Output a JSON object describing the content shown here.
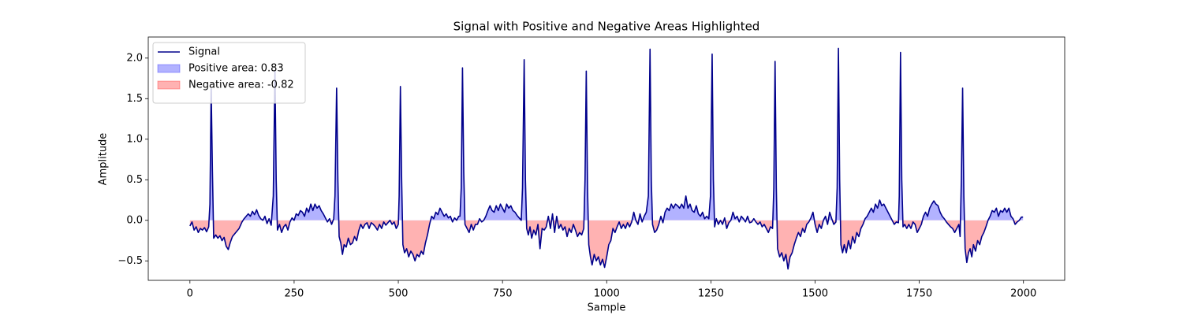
{
  "chart_data": {
    "type": "line",
    "title": "Signal with Positive and Negative Areas Highlighted",
    "xlabel": "Sample",
    "ylabel": "Amplitude",
    "xlim": [
      -99.95,
      2098.95
    ],
    "ylim": [
      -0.74,
      2.26
    ],
    "xticks": [
      0,
      250,
      500,
      750,
      1000,
      1250,
      1500,
      1750,
      2000
    ],
    "yticks": [
      {
        "value": -0.5,
        "label": "−0.5"
      },
      {
        "value": 0,
        "label": "0.0"
      },
      {
        "value": 0.5,
        "label": "0.5"
      },
      {
        "value": 1,
        "label": "1.0"
      },
      {
        "value": 1.5,
        "label": "1.5"
      },
      {
        "value": 2,
        "label": "2.0"
      }
    ],
    "legend": "upper left",
    "series": [
      {
        "name": "Signal",
        "color": "#00008b",
        "x": [
          0,
          5,
          10,
          15,
          20,
          25,
          30,
          35,
          40,
          45,
          48,
          51,
          54,
          57,
          62,
          67,
          72,
          77,
          82,
          87,
          92,
          97,
          102,
          110,
          118,
          125,
          130,
          135,
          140,
          145,
          150,
          155,
          160,
          165,
          170,
          175,
          180,
          185,
          190,
          195,
          200,
          204,
          207,
          210,
          215,
          220,
          225,
          230,
          235,
          240,
          245,
          250,
          255,
          260,
          265,
          270,
          275,
          280,
          285,
          290,
          295,
          300,
          305,
          310,
          315,
          320,
          325,
          330,
          335,
          340,
          345,
          348,
          352,
          355,
          358,
          362,
          366,
          370,
          375,
          380,
          385,
          390,
          395,
          400,
          405,
          410,
          415,
          420,
          425,
          430,
          435,
          440,
          445,
          450,
          455,
          460,
          465,
          470,
          475,
          480,
          485,
          490,
          495,
          500,
          502,
          505,
          508,
          511,
          515,
          520,
          525,
          530,
          535,
          540,
          545,
          550,
          555,
          560,
          565,
          570,
          575,
          580,
          585,
          590,
          595,
          600,
          605,
          610,
          615,
          620,
          625,
          630,
          635,
          640,
          645,
          648,
          651,
          654,
          657,
          660,
          665,
          670,
          675,
          680,
          685,
          690,
          695,
          700,
          705,
          710,
          715,
          720,
          725,
          730,
          735,
          740,
          745,
          750,
          755,
          760,
          765,
          770,
          775,
          780,
          785,
          790,
          795,
          798,
          802,
          805,
          808,
          812,
          816,
          820,
          825,
          830,
          835,
          840,
          845,
          850,
          855,
          860,
          865,
          870,
          875,
          880,
          885,
          890,
          895,
          900,
          905,
          910,
          915,
          920,
          925,
          930,
          935,
          940,
          945,
          948,
          951,
          954,
          957,
          961,
          965,
          970,
          975,
          980,
          985,
          990,
          995,
          1000,
          1005,
          1010,
          1015,
          1020,
          1025,
          1030,
          1035,
          1040,
          1045,
          1050,
          1055,
          1060,
          1065,
          1070,
          1075,
          1080,
          1085,
          1090,
          1095,
          1100,
          1104,
          1107,
          1110,
          1115,
          1120,
          1125,
          1130,
          1135,
          1140,
          1145,
          1150,
          1155,
          1160,
          1165,
          1170,
          1175,
          1180,
          1185,
          1190,
          1195,
          1200,
          1205,
          1210,
          1215,
          1220,
          1225,
          1230,
          1235,
          1240,
          1245,
          1249,
          1253,
          1256,
          1259,
          1263,
          1268,
          1273,
          1278,
          1283,
          1288,
          1293,
          1298,
          1303,
          1308,
          1313,
          1318,
          1323,
          1328,
          1333,
          1338,
          1343,
          1348,
          1353,
          1358,
          1363,
          1368,
          1373,
          1378,
          1383,
          1388,
          1393,
          1398,
          1401,
          1404,
          1407,
          1410,
          1415,
          1420,
          1425,
          1430,
          1435,
          1440,
          1445,
          1450,
          1455,
          1460,
          1465,
          1470,
          1475,
          1480,
          1485,
          1490,
          1495,
          1500,
          1505,
          1510,
          1515,
          1520,
          1525,
          1530,
          1535,
          1540,
          1545,
          1550,
          1553,
          1556,
          1559,
          1562,
          1566,
          1570,
          1575,
          1580,
          1585,
          1590,
          1595,
          1600,
          1605,
          1610,
          1615,
          1620,
          1625,
          1630,
          1635,
          1640,
          1645,
          1650,
          1655,
          1660,
          1665,
          1670,
          1675,
          1680,
          1685,
          1690,
          1695,
          1700,
          1702,
          1705,
          1708,
          1711,
          1715,
          1720,
          1725,
          1730,
          1735,
          1740,
          1745,
          1750,
          1755,
          1760,
          1765,
          1770,
          1775,
          1780,
          1785,
          1790,
          1795,
          1800,
          1805,
          1810,
          1815,
          1820,
          1825,
          1830,
          1835,
          1840,
          1845,
          1848,
          1851,
          1854,
          1857,
          1860,
          1864,
          1868,
          1872,
          1876,
          1880,
          1885,
          1890,
          1895,
          1900,
          1905,
          1910,
          1915,
          1920,
          1925,
          1930,
          1935,
          1940,
          1945,
          1950,
          1955,
          1960,
          1965,
          1970,
          1975,
          1980,
          1985,
          1990,
          1995,
          1999
        ],
        "values": [
          -0.07,
          -0.02,
          -0.12,
          -0.08,
          -0.15,
          -0.1,
          -0.12,
          -0.09,
          -0.14,
          -0.08,
          0.2,
          1.62,
          0.6,
          -0.22,
          -0.18,
          -0.22,
          -0.19,
          -0.25,
          -0.21,
          -0.32,
          -0.36,
          -0.27,
          -0.2,
          -0.15,
          -0.1,
          -0.02,
          0.02,
          0.05,
          0.08,
          0.05,
          0.11,
          0.07,
          0.13,
          0.06,
          0.02,
          0.0,
          0.05,
          -0.04,
          0.02,
          -0.06,
          0.3,
          1.84,
          0.5,
          -0.12,
          -0.05,
          -0.15,
          -0.08,
          -0.05,
          -0.12,
          -0.02,
          0.03,
          0.0,
          0.08,
          0.06,
          0.12,
          0.1,
          0.05,
          0.15,
          0.1,
          0.2,
          0.12,
          0.2,
          0.15,
          0.18,
          0.12,
          0.08,
          0.03,
          -0.02,
          0.02,
          -0.05,
          0.02,
          0.3,
          1.63,
          0.5,
          -0.2,
          -0.28,
          -0.42,
          -0.3,
          -0.33,
          -0.22,
          -0.3,
          -0.28,
          -0.2,
          -0.25,
          -0.13,
          -0.05,
          -0.1,
          -0.05,
          -0.03,
          -0.1,
          -0.03,
          -0.05,
          -0.08,
          -0.12,
          -0.05,
          -0.1,
          -0.02,
          -0.06,
          -0.03,
          0.0,
          -0.05,
          -0.02,
          -0.1,
          -0.05,
          0.3,
          1.65,
          0.5,
          -0.3,
          -0.4,
          -0.35,
          -0.45,
          -0.38,
          -0.42,
          -0.5,
          -0.42,
          -0.45,
          -0.38,
          -0.42,
          -0.28,
          -0.18,
          -0.05,
          0.05,
          0.02,
          0.1,
          0.07,
          0.15,
          0.1,
          0.05,
          0.08,
          0.03,
          0.05,
          -0.02,
          0.03,
          0.0,
          0.05,
          0.05,
          0.4,
          1.88,
          0.6,
          -0.05,
          -0.1,
          -0.15,
          -0.05,
          -0.12,
          -0.05,
          -0.05,
          0.02,
          -0.02,
          0.0,
          0.05,
          0.12,
          0.18,
          0.12,
          0.1,
          0.18,
          0.12,
          0.2,
          0.15,
          0.1,
          0.2,
          0.15,
          0.18,
          0.12,
          0.1,
          0.06,
          0.03,
          0.0,
          0.4,
          1.98,
          0.5,
          -0.1,
          -0.18,
          -0.08,
          -0.22,
          -0.12,
          -0.18,
          -0.05,
          -0.35,
          -0.1,
          -0.12,
          -0.08,
          0.05,
          -0.1,
          0.08,
          -0.15,
          0.05,
          -0.1,
          -0.05,
          -0.12,
          -0.08,
          -0.2,
          -0.1,
          -0.15,
          -0.05,
          -0.12,
          -0.2,
          -0.15,
          -0.18,
          -0.1,
          0.5,
          1.84,
          0.4,
          -0.3,
          -0.45,
          -0.55,
          -0.42,
          -0.5,
          -0.45,
          -0.55,
          -0.48,
          -0.58,
          -0.45,
          -0.3,
          -0.25,
          -0.1,
          -0.15,
          -0.08,
          -0.02,
          -0.1,
          -0.05,
          -0.1,
          -0.03,
          -0.08,
          -0.02,
          0.1,
          0.0,
          -0.05,
          0.08,
          -0.02,
          0.05,
          0.1,
          0.3,
          2.11,
          0.5,
          -0.05,
          -0.15,
          -0.12,
          -0.05,
          0.05,
          -0.03,
          0.1,
          0.15,
          0.12,
          0.2,
          0.15,
          0.2,
          0.18,
          0.15,
          0.2,
          0.15,
          0.3,
          0.15,
          0.2,
          0.12,
          0.1,
          0.18,
          0.08,
          0.05,
          0.1,
          0.02,
          0.05,
          0.02,
          0.3,
          2.05,
          0.5,
          -0.08,
          0.02,
          -0.05,
          0.0,
          -0.05,
          0.03,
          -0.1,
          -0.03,
          0.0,
          0.1,
          0.02,
          0.05,
          -0.02,
          0.05,
          0.02,
          -0.02,
          0.05,
          -0.03,
          -0.02,
          0.02,
          -0.02,
          -0.05,
          -0.02,
          -0.08,
          -0.05,
          -0.1,
          -0.15,
          -0.08,
          -0.1,
          0.4,
          1.96,
          0.4,
          -0.35,
          -0.45,
          -0.4,
          -0.5,
          -0.42,
          -0.6,
          -0.45,
          -0.4,
          -0.3,
          -0.22,
          -0.15,
          -0.2,
          -0.1,
          -0.15,
          -0.05,
          -0.02,
          0.03,
          0.1,
          -0.05,
          -0.15,
          -0.05,
          -0.1,
          0.0,
          0.05,
          -0.05,
          0.1,
          0.02,
          -0.05,
          -0.02,
          0.4,
          2.12,
          0.5,
          -0.3,
          -0.4,
          -0.3,
          -0.4,
          -0.25,
          -0.35,
          -0.2,
          -0.28,
          -0.15,
          -0.2,
          -0.1,
          -0.05,
          0.02,
          0.05,
          0.1,
          0.15,
          0.1,
          0.2,
          0.15,
          0.25,
          0.18,
          0.2,
          0.15,
          0.1,
          0.05,
          0.0,
          -0.05,
          -0.02,
          -0.03,
          0.3,
          2.07,
          0.5,
          -0.08,
          -0.05,
          -0.1,
          -0.05,
          -0.1,
          -0.02,
          -0.05,
          -0.15,
          -0.1,
          -0.05,
          0.05,
          0.1,
          0.05,
          0.15,
          0.2,
          0.24,
          0.2,
          0.18,
          0.1,
          0.05,
          0.02,
          -0.02,
          -0.05,
          -0.08,
          -0.1,
          -0.15,
          -0.1,
          -0.05,
          -0.2,
          0.5,
          1.63,
          0.3,
          -0.35,
          -0.52,
          -0.4,
          -0.35,
          -0.45,
          -0.3,
          -0.38,
          -0.25,
          -0.3,
          -0.2,
          -0.15,
          -0.08,
          0.0,
          0.05,
          0.12,
          0.1,
          0.15,
          0.05,
          0.12,
          0.1,
          0.15,
          0.1,
          0.15,
          0.05,
          0.02,
          -0.05,
          -0.02,
          0.0,
          0.04,
          0.04
        ]
      }
    ],
    "fills": [
      {
        "name": "Positive area: 0.83",
        "color": "blue",
        "alpha": 0.3,
        "where": "above"
      },
      {
        "name": "Negative area: -0.82",
        "color": "red",
        "alpha": 0.3,
        "where": "below"
      }
    ]
  }
}
